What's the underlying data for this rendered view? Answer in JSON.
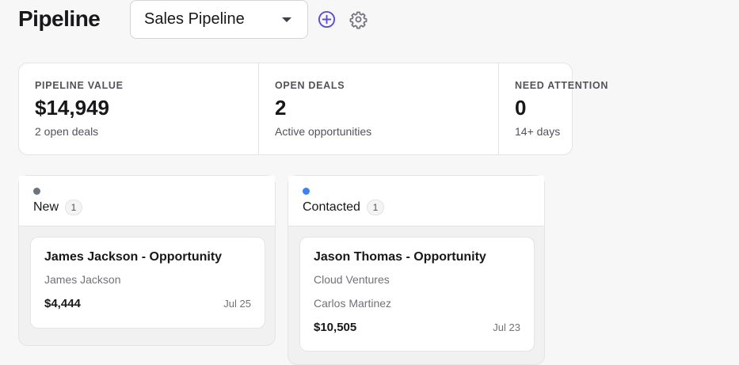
{
  "header": {
    "title": "Pipeline",
    "pipeline_select": {
      "value": "Sales Pipeline"
    },
    "add_icon": "plus-circle-icon",
    "settings_icon": "gear-icon",
    "accent_color": "#5b4fd6"
  },
  "stats": [
    {
      "label": "PIPELINE VALUE",
      "value": "$14,949",
      "sub": "2 open deals"
    },
    {
      "label": "OPEN DEALS",
      "value": "2",
      "sub": "Active opportunities"
    },
    {
      "label": "NEED ATTENTION",
      "value": "0",
      "sub": "14+ days"
    }
  ],
  "columns": [
    {
      "name": "New",
      "count": "1",
      "dot_color": "#6b7280",
      "deals": [
        {
          "title": "James Jackson - Opportunity",
          "lines": [
            "James Jackson"
          ],
          "amount": "$4,444",
          "date": "Jul 25"
        }
      ]
    },
    {
      "name": "Contacted",
      "count": "1",
      "dot_color": "#3b82f6",
      "deals": [
        {
          "title": "Jason Thomas - Opportunity",
          "lines": [
            "Cloud Ventures",
            "Carlos Martinez"
          ],
          "amount": "$10,505",
          "date": "Jul 23"
        }
      ]
    }
  ]
}
